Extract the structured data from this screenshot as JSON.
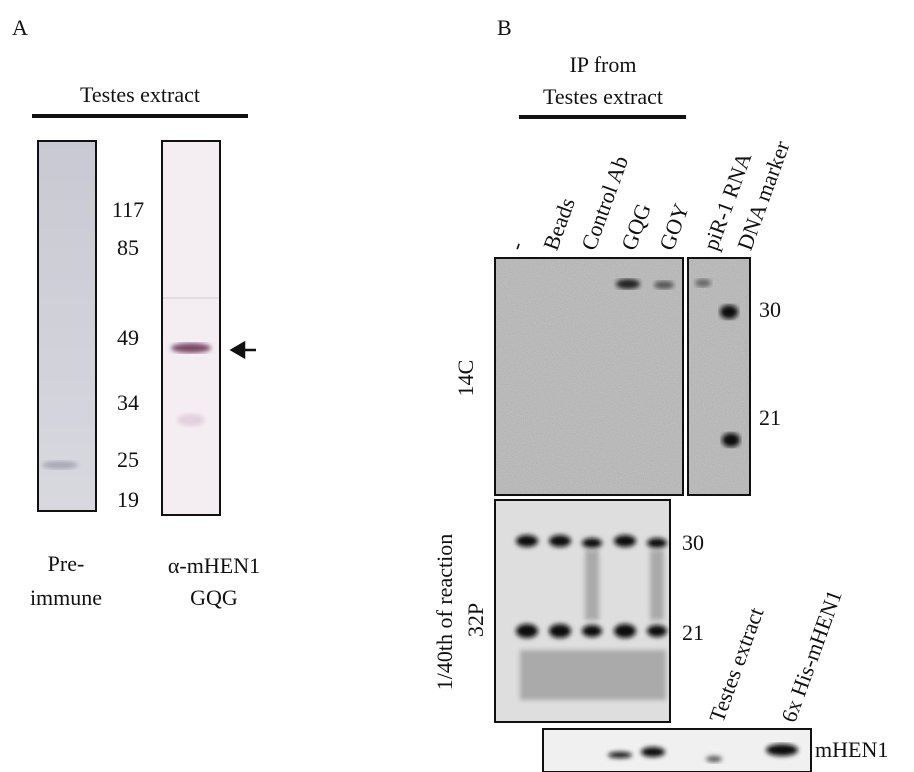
{
  "panel_a": {
    "letter": "A",
    "header": "Testes extract",
    "markers": [
      "117",
      "85",
      "49",
      "34",
      "25",
      "19"
    ],
    "lanes": [
      {
        "line1": "Pre-",
        "line2": "immune"
      },
      {
        "line1": "α-mHEN1",
        "line2": "GQG"
      }
    ]
  },
  "panel_b": {
    "letter": "B",
    "header": {
      "line1": "IP from",
      "line2": "Testes extract"
    },
    "lane_labels": [
      "-",
      "Beads",
      "Control Ab",
      "GQG",
      "GOY",
      "piR-1 RNA",
      "DNA marker"
    ],
    "gel_14c": {
      "label": "14C",
      "markers": [
        "30",
        "21"
      ]
    },
    "gel_32p": {
      "label_line1": "1/40th of reaction",
      "label_line2": "32P",
      "markers": [
        "30",
        "21"
      ]
    },
    "western": {
      "lane_labels": [
        "Testes extract",
        "6x His-mHEN1"
      ],
      "label": "mHEN1"
    }
  }
}
